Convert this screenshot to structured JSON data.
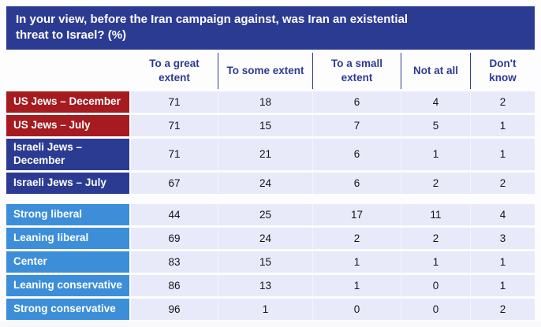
{
  "title": {
    "line1": "In your view, before the Iran campaign against, was Iran an existential",
    "line2": "threat to Israel? (%)"
  },
  "colors": {
    "title_bg": "#2c3b92",
    "header_text": "#2c3b92",
    "cell_bg": "#e8eafa",
    "red": "#a51b20",
    "darkblue": "#2c3b92",
    "lightblue": "#3c8ed8"
  },
  "chart_data": {
    "type": "table",
    "title": "In your view, before the Iran campaign against, was Iran an existential threat to Israel? (%)",
    "columns": [
      "To a great extent",
      "To some extent",
      "To a small extent",
      "Not at all",
      "Don't know"
    ],
    "rows": [
      {
        "label": "US Jews – December",
        "color": "red",
        "group": 1,
        "values": [
          71,
          18,
          6,
          4,
          2
        ]
      },
      {
        "label": "US Jews – July",
        "color": "red",
        "group": 1,
        "values": [
          71,
          15,
          7,
          5,
          1
        ]
      },
      {
        "label": "Israeli Jews – December",
        "color": "darkblue",
        "group": 1,
        "values": [
          71,
          21,
          6,
          1,
          1
        ]
      },
      {
        "label": "Israeli Jews – July",
        "color": "darkblue",
        "group": 1,
        "values": [
          67,
          24,
          6,
          2,
          2
        ]
      },
      {
        "label": "Strong liberal",
        "color": "lightblue",
        "group": 2,
        "values": [
          44,
          25,
          17,
          11,
          4
        ]
      },
      {
        "label": "Leaning liberal",
        "color": "lightblue",
        "group": 2,
        "values": [
          69,
          24,
          2,
          2,
          3
        ]
      },
      {
        "label": "Center",
        "color": "lightblue",
        "group": 2,
        "values": [
          83,
          15,
          1,
          1,
          1
        ]
      },
      {
        "label": "Leaning conservative",
        "color": "lightblue",
        "group": 2,
        "values": [
          86,
          13,
          1,
          0,
          1
        ]
      },
      {
        "label": "Strong conservative",
        "color": "lightblue",
        "group": 2,
        "values": [
          96,
          1,
          0,
          0,
          2
        ]
      }
    ]
  }
}
